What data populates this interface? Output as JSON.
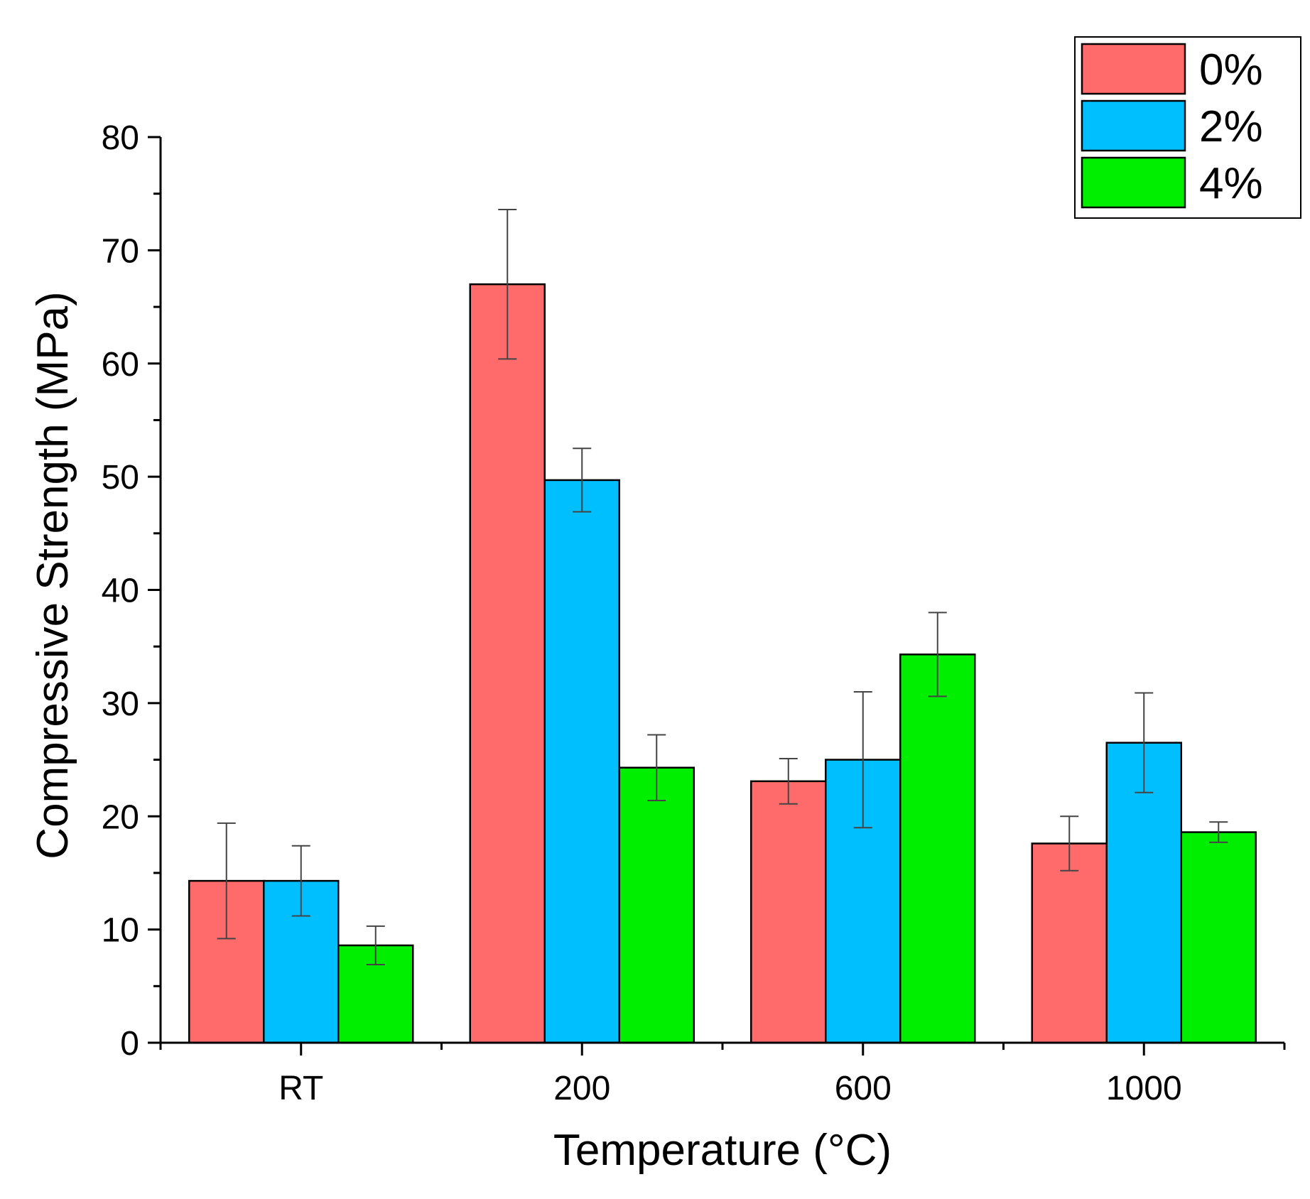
{
  "chart_data": {
    "type": "bar",
    "title": "",
    "xlabel": "Temperature (°C)",
    "ylabel": "Compressive Strength (MPa)",
    "ylim": [
      0,
      80
    ],
    "yticks": [
      0,
      10,
      20,
      30,
      40,
      50,
      60,
      70,
      80
    ],
    "categories": [
      "RT",
      "200",
      "600",
      "1000"
    ],
    "series": [
      {
        "name": "0%",
        "color": "#ff6b6b",
        "values": [
          14.3,
          67.0,
          23.1,
          17.6
        ],
        "errors": [
          5.1,
          6.6,
          2.0,
          2.4
        ]
      },
      {
        "name": "2%",
        "color": "#00bfff",
        "values": [
          14.3,
          49.7,
          25.0,
          26.5
        ],
        "errors": [
          3.1,
          2.8,
          6.0,
          4.4
        ]
      },
      {
        "name": "4%",
        "color": "#00ee00",
        "values": [
          8.6,
          24.3,
          34.3,
          18.6
        ],
        "errors": [
          1.7,
          2.9,
          3.7,
          0.9
        ]
      }
    ],
    "legend_position": "top-right",
    "grid": false
  }
}
